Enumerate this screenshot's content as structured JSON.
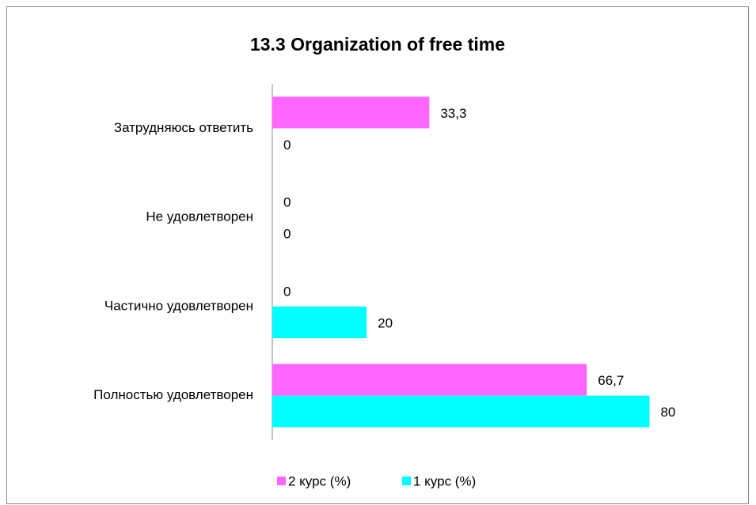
{
  "chart_data": {
    "type": "bar",
    "orientation": "horizontal",
    "title": "13.3 Organization of free time",
    "categories": [
      "Затрудняюсь ответить",
      "Не удовлетворен",
      "Частично удовлетворен",
      "Полностью удовлетворен"
    ],
    "series": [
      {
        "name": "2 курс (%)",
        "color": "#ff66ff",
        "values": [
          33.3,
          0,
          0,
          66.7
        ],
        "value_labels": [
          "33,3",
          "0",
          "0",
          "66,7"
        ]
      },
      {
        "name": "1 курс (%)",
        "color": "#00ffff",
        "values": [
          0,
          0,
          20,
          80
        ],
        "value_labels": [
          "0",
          "0",
          "20",
          "80"
        ]
      }
    ],
    "xlim": [
      0,
      90
    ],
    "legend": "bottom"
  }
}
